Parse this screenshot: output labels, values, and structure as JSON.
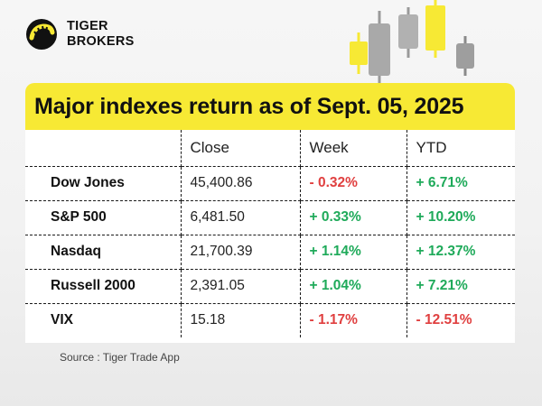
{
  "brand": {
    "line1": "TIGER",
    "line2": "BROKERS",
    "accent": "#f7e934"
  },
  "banner": {
    "title": "Major indexes return as of Sept. 05, 2025"
  },
  "table": {
    "headers": [
      "",
      "Close",
      "Week",
      "YTD"
    ],
    "rows": [
      {
        "name": "Dow Jones",
        "close": "45,400.86",
        "week": "- 0.32%",
        "week_dir": "down",
        "ytd": "+ 6.71%",
        "ytd_dir": "up"
      },
      {
        "name": "S&P 500",
        "close": "6,481.50",
        "week": "+ 0.33%",
        "week_dir": "up",
        "ytd": "+ 10.20%",
        "ytd_dir": "up"
      },
      {
        "name": "Nasdaq",
        "close": "21,700.39",
        "week": "+ 1.14%",
        "week_dir": "up",
        "ytd": "+ 12.37%",
        "ytd_dir": "up"
      },
      {
        "name": "Russell 2000",
        "close": "2,391.05",
        "week": "+ 1.04%",
        "week_dir": "up",
        "ytd": "+ 7.21%",
        "ytd_dir": "up"
      },
      {
        "name": "VIX",
        "close": "15.18",
        "week": "- 1.17%",
        "week_dir": "down",
        "ytd": "- 12.51%",
        "ytd_dir": "down"
      }
    ]
  },
  "source": "Source : Tiger Trade App",
  "colors": {
    "up": "#1faa5a",
    "down": "#e04040"
  }
}
